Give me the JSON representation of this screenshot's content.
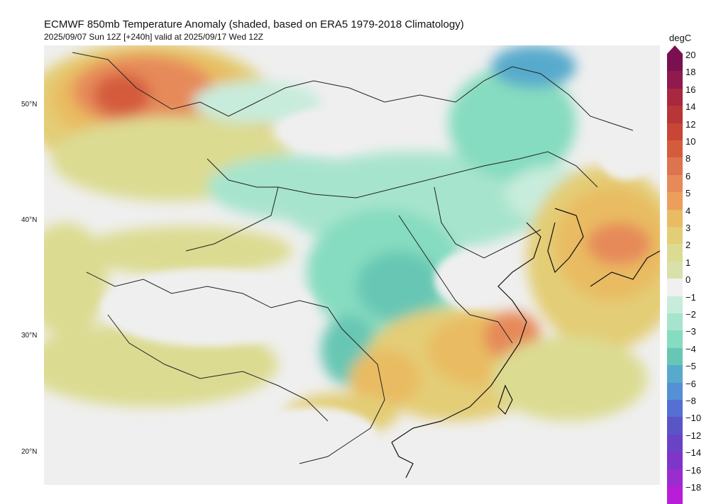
{
  "header": {
    "title": "ECMWF 850mb Temperature Anomaly (shaded, based on ERA5 1979-2018 Climatology)",
    "subtitle": "2025/09/07 Sun 12Z [+240h] valid at 2025/09/17 Wed 12Z"
  },
  "map": {
    "lat_labels": [
      "50°N",
      "40°N",
      "30°N",
      "20°N"
    ],
    "field": "850mb Temperature Anomaly"
  },
  "colorbar": {
    "unit": "degC",
    "ticks": [
      "20",
      "18",
      "16",
      "14",
      "12",
      "10",
      "8",
      "6",
      "5",
      "4",
      "3",
      "2",
      "1",
      "0",
      "-1",
      "-2",
      "-3",
      "-4",
      "-5",
      "-6",
      "-8",
      "-10",
      "-12",
      "-14",
      "-16",
      "-18"
    ],
    "colors": {
      "20": "#7a1050",
      "18": "#8e1a4e",
      "16": "#a8283f",
      "14": "#b83538",
      "12": "#c94535",
      "10": "#d45c3c",
      "8": "#de7350",
      "6": "#e68a5a",
      "5": "#ec9e5c",
      "4": "#e9bb62",
      "3": "#e3cd76",
      "2": "#dcdb92",
      "1": "#d8e1aa",
      "0": "#f0f0f0",
      "-1": "#c8ecdc",
      "-2": "#a7e4cd",
      "-3": "#86dcc0",
      "-4": "#68c7b4",
      "-5": "#58aacc",
      "-6": "#5590d4",
      "-8": "#556fd2",
      "-10": "#5a55c7",
      "-12": "#6a43c4",
      "-14": "#7f35c8",
      "-16": "#9b2cd0",
      "-18": "#b81ed8"
    }
  }
}
